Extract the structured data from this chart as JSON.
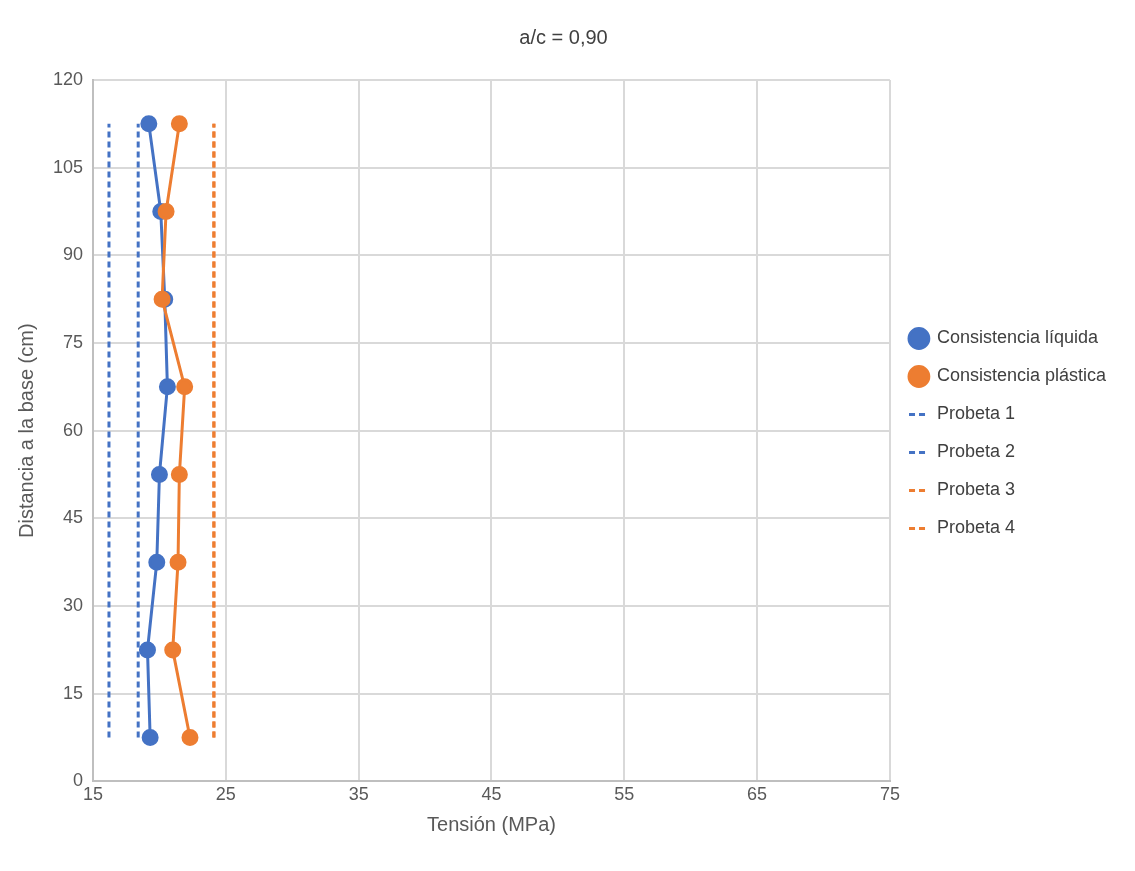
{
  "chart_data": {
    "type": "line",
    "title": "a/c = 0,90",
    "xlabel": "Tensión (MPa)",
    "ylabel": "Distancia a la base (cm)",
    "xlim": [
      15,
      75
    ],
    "xticks": [
      15,
      25,
      35,
      45,
      55,
      65,
      75
    ],
    "ylim": [
      0,
      120
    ],
    "yticks": [
      0,
      15,
      30,
      45,
      60,
      75,
      90,
      105,
      120
    ],
    "grid": true,
    "legend": "right",
    "series": [
      {
        "name": "Consistencia líquida",
        "color": "#4472c4",
        "marker": "circle",
        "line_style": "solid",
        "x": [
          19.3,
          19.1,
          19.8,
          20.0,
          20.6,
          20.4,
          20.1,
          19.2
        ],
        "values": [
          7.5,
          22.5,
          37.5,
          52.5,
          67.5,
          82.5,
          97.5,
          112.5
        ]
      },
      {
        "name": "Consistencia plástica",
        "color": "#ed7d31",
        "marker": "circle",
        "line_style": "solid",
        "x": [
          22.3,
          21.0,
          21.4,
          21.5,
          21.9,
          20.2,
          20.5,
          21.5
        ],
        "values": [
          7.5,
          22.5,
          37.5,
          52.5,
          67.5,
          82.5,
          97.5,
          112.5
        ]
      },
      {
        "name": "Probeta 1",
        "color": "#4472c4",
        "marker": "none",
        "line_style": "dashed",
        "x": [
          16.2,
          16.2
        ],
        "values": [
          7.5,
          112.5
        ]
      },
      {
        "name": "Probeta 2",
        "color": "#4472c4",
        "marker": "none",
        "line_style": "dashed",
        "x": [
          18.4,
          18.4
        ],
        "values": [
          7.5,
          112.5
        ]
      },
      {
        "name": "Probeta 3",
        "color": "#ed7d31",
        "marker": "none",
        "line_style": "dashed",
        "x": [
          24.1,
          24.1
        ],
        "values": [
          7.5,
          112.5
        ]
      },
      {
        "name": "Probeta 4",
        "color": "#ed7d31",
        "marker": "none",
        "line_style": "dashed",
        "x": [
          24.1,
          24.1
        ],
        "values": [
          7.5,
          112.5
        ]
      }
    ]
  }
}
